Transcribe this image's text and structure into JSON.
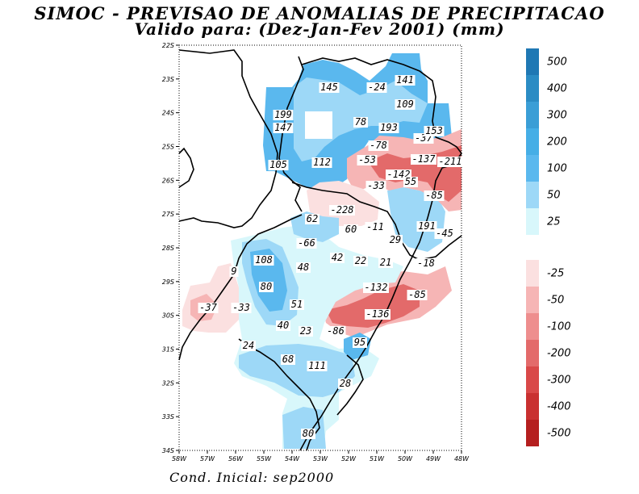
{
  "title_line1": "SIMOC - PREVISAO DE ANOMALIAS DE PRECIPITACAO",
  "title_line2": "Valido para: (Dez-Jan-Fev 2001) (mm)",
  "footer": "Cond. Inicial: sep2000",
  "lat_ticks": [
    "22S",
    "23S",
    "24S",
    "25S",
    "26S",
    "27S",
    "28S",
    "29S",
    "30S",
    "31S",
    "32S",
    "33S",
    "34S"
  ],
  "lon_ticks": [
    "58W",
    "57W",
    "56W",
    "55W",
    "54W",
    "53W",
    "52W",
    "51W",
    "50W",
    "49W",
    "48W"
  ],
  "colorbar": {
    "positive": [
      {
        "label": "500",
        "color": "#1f78b4"
      },
      {
        "label": "400",
        "color": "#2b8cc4"
      },
      {
        "label": "300",
        "color": "#3a9ed6"
      },
      {
        "label": "200",
        "color": "#45aee6"
      },
      {
        "label": "100",
        "color": "#5ab8ee"
      },
      {
        "label": "50",
        "color": "#9dd8f7"
      },
      {
        "label": "25",
        "color": "#d8f7fb"
      }
    ],
    "negative": [
      {
        "label": "-25",
        "color": "#fbe0e0"
      },
      {
        "label": "-50",
        "color": "#f6b5b5"
      },
      {
        "label": "-100",
        "color": "#ee8e8e"
      },
      {
        "label": "-200",
        "color": "#e36a6a"
      },
      {
        "label": "-300",
        "color": "#d94848"
      },
      {
        "label": "-400",
        "color": "#c93030"
      },
      {
        "label": "-500",
        "color": "#b51f1f"
      }
    ]
  },
  "contour_values": [
    {
      "v": "145"
    },
    {
      "v": "-24"
    },
    {
      "v": "141"
    },
    {
      "v": "109"
    },
    {
      "v": "199"
    },
    {
      "v": "147"
    },
    {
      "v": "78"
    },
    {
      "v": "193"
    },
    {
      "v": "-37"
    },
    {
      "v": "153"
    },
    {
      "v": "-78"
    },
    {
      "v": "-53"
    },
    {
      "v": "-137"
    },
    {
      "v": "-211"
    },
    {
      "v": "105"
    },
    {
      "v": "112"
    },
    {
      "v": "-142"
    },
    {
      "v": "-33"
    },
    {
      "v": "55"
    },
    {
      "v": "-85"
    },
    {
      "v": "-228"
    },
    {
      "v": "62"
    },
    {
      "v": "60"
    },
    {
      "v": "-11"
    },
    {
      "v": "191"
    },
    {
      "v": "-45"
    },
    {
      "v": "-66"
    },
    {
      "v": "29"
    },
    {
      "v": "108"
    },
    {
      "v": "42"
    },
    {
      "v": "22"
    },
    {
      "v": "21"
    },
    {
      "v": "-18"
    },
    {
      "v": "9"
    },
    {
      "v": "48"
    },
    {
      "v": "80"
    },
    {
      "v": "-132"
    },
    {
      "v": "-85"
    },
    {
      "v": "-37"
    },
    {
      "v": "-33"
    },
    {
      "v": "51"
    },
    {
      "v": "-136"
    },
    {
      "v": "40"
    },
    {
      "v": "23"
    },
    {
      "v": "-86"
    },
    {
      "v": "24"
    },
    {
      "v": "95"
    },
    {
      "v": "68"
    },
    {
      "v": "111"
    },
    {
      "v": "28"
    },
    {
      "v": "80"
    }
  ]
}
